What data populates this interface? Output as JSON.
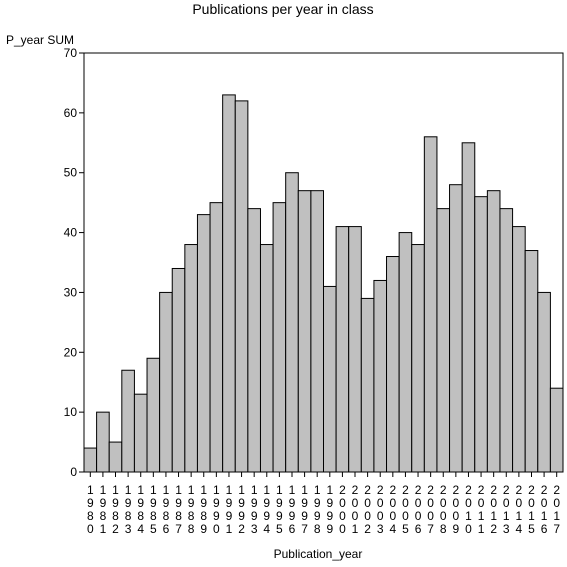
{
  "chart_data": {
    "type": "bar",
    "title": "Publications per year in class",
    "ylabel": "P_year SUM",
    "xlabel": "Publication_year",
    "ylim": [
      0,
      70
    ],
    "yticks": [
      0,
      10,
      20,
      30,
      40,
      50,
      60,
      70
    ],
    "grid": false,
    "categories": [
      "1980",
      "1981",
      "1982",
      "1983",
      "1984",
      "1985",
      "1986",
      "1987",
      "1988",
      "1989",
      "1990",
      "1991",
      "1992",
      "1993",
      "1994",
      "1995",
      "1996",
      "1997",
      "1998",
      "1999",
      "2000",
      "2001",
      "2002",
      "2003",
      "2004",
      "2005",
      "2006",
      "2007",
      "2008",
      "2009",
      "2010",
      "2011",
      "2012",
      "2013",
      "2014",
      "2015",
      "2016",
      "2017"
    ],
    "values": [
      4,
      10,
      5,
      17,
      13,
      19,
      30,
      34,
      38,
      43,
      45,
      63,
      62,
      44,
      38,
      45,
      50,
      47,
      47,
      31,
      41,
      41,
      29,
      32,
      36,
      40,
      38,
      56,
      44,
      48,
      55,
      46,
      47,
      44,
      41,
      37,
      30,
      14
    ],
    "bar_color": "#c0c0c0",
    "edge_color": "#000000"
  }
}
